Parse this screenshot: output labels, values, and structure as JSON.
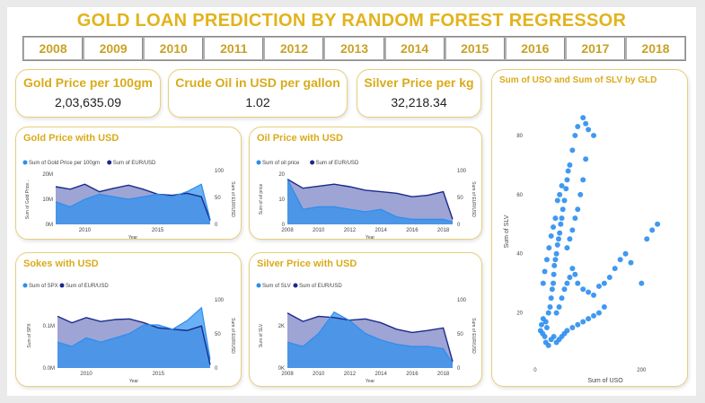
{
  "title": "GOLD LOAN PREDICTION BY RANDOM FOREST REGRESSOR",
  "years": [
    "2008",
    "2009",
    "2010",
    "2011",
    "2012",
    "2013",
    "2014",
    "2015",
    "2016",
    "2017",
    "2018"
  ],
  "kpis": {
    "gold": {
      "label": "Gold Price per 100gm",
      "value": "2,03,635.09"
    },
    "oil": {
      "label": "Crude Oil in USD per gallon",
      "value": "1.02"
    },
    "silver": {
      "label": "Silver Price per kg",
      "value": "32,218.34"
    }
  },
  "colors": {
    "series_light": "#2b8ef0",
    "series_dark": "#1a2a8c",
    "accent": "#d9ab1a",
    "scatter": "#2b8ef0"
  },
  "charts": {
    "gold": {
      "title": "Gold Price with USD",
      "legend": [
        "Sum of Gold Price per 100gm",
        "Sum of EUR/USD"
      ],
      "ylabel": "Sum of Gold Price...",
      "y2label": "Sum of EUR/USD",
      "xlabel": "Year",
      "yticks": [
        "20M",
        "10M",
        "0M"
      ],
      "y2ticks": [
        "100",
        "50",
        "0"
      ],
      "xticks": [
        "2010",
        "2015"
      ]
    },
    "oil": {
      "title": "Oil Price with USD",
      "legend": [
        "Sum of oil price",
        "Sum of EUR/USD"
      ],
      "ylabel": "Sum of oil price",
      "y2label": "Sum of EUR/USD",
      "xlabel": "Year",
      "yticks": [
        "20",
        "10",
        "0"
      ],
      "y2ticks": [
        "100",
        "50",
        "0"
      ],
      "xticks": [
        "2008",
        "2010",
        "2012",
        "2014",
        "2016",
        "2018"
      ]
    },
    "sokes": {
      "title": "Sokes with USD",
      "legend": [
        "Sum of SPX",
        "Sum of EUR/USD"
      ],
      "ylabel": "Sum of SPX",
      "y2label": "Sum of EUR/USD",
      "xlabel": "Year",
      "yticks": [
        "0.1M",
        "0.0M"
      ],
      "y2ticks": [
        "100",
        "50",
        "0"
      ],
      "xticks": [
        "2010",
        "2015"
      ]
    },
    "silver": {
      "title": "Silver Price with USD",
      "legend": [
        "Sum of SLV",
        "Sum of EUR/USD"
      ],
      "ylabel": "Sum of SLV",
      "y2label": "Sum of EUR/USD",
      "xlabel": "Year",
      "yticks": [
        "2K",
        "0K"
      ],
      "y2ticks": [
        "100",
        "50",
        "0"
      ],
      "xticks": [
        "2008",
        "2010",
        "2012",
        "2014",
        "2016",
        "2018"
      ]
    },
    "scatter": {
      "title": "Sum of USO and Sum of SLV by GLD",
      "xlabel": "Sum of USO",
      "ylabel": "Sum of SLV",
      "yticks": [
        "80",
        "60",
        "40",
        "20"
      ],
      "xticks": [
        "0",
        "200"
      ]
    }
  },
  "chart_data": [
    {
      "type": "area",
      "title": "Gold Price with USD",
      "xlabel": "Year",
      "ylim": [
        0,
        20
      ],
      "y2lim": [
        0,
        100
      ],
      "x": [
        2008,
        2009,
        2010,
        2011,
        2012,
        2013,
        2014,
        2015,
        2016,
        2017,
        2018,
        2018.6
      ],
      "series": [
        {
          "name": "Sum of Gold Price per 100gm",
          "axis": "left",
          "values": [
            9,
            7,
            10,
            12,
            11,
            10,
            11,
            12,
            11,
            13,
            16,
            2
          ]
        },
        {
          "name": "Sum of EUR/USD",
          "axis": "right",
          "values": [
            75,
            70,
            80,
            65,
            72,
            78,
            70,
            60,
            58,
            62,
            55,
            8
          ]
        }
      ]
    },
    {
      "type": "area",
      "title": "Oil Price with USD",
      "xlabel": "Year",
      "ylim": [
        0,
        20
      ],
      "y2lim": [
        0,
        100
      ],
      "x": [
        2008,
        2009,
        2010,
        2011,
        2012,
        2013,
        2014,
        2015,
        2016,
        2017,
        2018,
        2018.6
      ],
      "series": [
        {
          "name": "Sum of oil price",
          "axis": "left",
          "values": [
            18,
            6,
            7,
            7,
            6,
            5,
            6,
            3,
            2,
            2,
            2,
            1
          ]
        },
        {
          "name": "Sum of EUR/USD",
          "axis": "right",
          "values": [
            90,
            72,
            76,
            80,
            75,
            68,
            65,
            62,
            55,
            58,
            65,
            10
          ]
        }
      ]
    },
    {
      "type": "area",
      "title": "Sokes with USD",
      "xlabel": "Year",
      "ylim": [
        0,
        0.15
      ],
      "y2lim": [
        0,
        100
      ],
      "x": [
        2008,
        2009,
        2010,
        2011,
        2012,
        2013,
        2014,
        2015,
        2016,
        2017,
        2018,
        2018.6
      ],
      "series": [
        {
          "name": "Sum of SPX",
          "axis": "left",
          "values": [
            0.06,
            0.05,
            0.07,
            0.06,
            0.07,
            0.08,
            0.1,
            0.1,
            0.09,
            0.11,
            0.14,
            0.02
          ]
        },
        {
          "name": "Sum of EUR/USD",
          "axis": "right",
          "values": [
            80,
            70,
            78,
            72,
            75,
            76,
            70,
            62,
            60,
            58,
            65,
            5
          ]
        }
      ]
    },
    {
      "type": "area",
      "title": "Silver Price with USD",
      "xlabel": "Year",
      "ylim": [
        0,
        3
      ],
      "y2lim": [
        0,
        100
      ],
      "x": [
        2008,
        2009,
        2010,
        2011,
        2012,
        2013,
        2014,
        2015,
        2016,
        2017,
        2018,
        2018.6
      ],
      "series": [
        {
          "name": "Sum of SLV",
          "axis": "left",
          "values": [
            1.2,
            1.0,
            1.6,
            2.6,
            2.2,
            1.6,
            1.3,
            1.1,
            1.0,
            1.0,
            0.9,
            0.2
          ]
        },
        {
          "name": "Sum of EUR/USD",
          "axis": "right",
          "values": [
            85,
            72,
            80,
            78,
            74,
            76,
            70,
            60,
            55,
            58,
            62,
            10
          ]
        }
      ]
    },
    {
      "type": "scatter",
      "title": "Sum of USO and Sum of SLV by GLD",
      "xlabel": "Sum of USO",
      "ylabel": "Sum of SLV",
      "xlim": [
        -10,
        240
      ],
      "ylim": [
        5,
        90
      ],
      "points": [
        [
          10,
          14
        ],
        [
          12,
          16
        ],
        [
          14,
          13
        ],
        [
          15,
          18
        ],
        [
          18,
          12
        ],
        [
          20,
          17
        ],
        [
          22,
          15
        ],
        [
          25,
          20
        ],
        [
          28,
          22
        ],
        [
          30,
          25
        ],
        [
          32,
          28
        ],
        [
          34,
          30
        ],
        [
          35,
          33
        ],
        [
          36,
          36
        ],
        [
          38,
          38
        ],
        [
          40,
          40
        ],
        [
          42,
          43
        ],
        [
          44,
          45
        ],
        [
          46,
          47
        ],
        [
          48,
          50
        ],
        [
          50,
          52
        ],
        [
          52,
          55
        ],
        [
          55,
          58
        ],
        [
          58,
          62
        ],
        [
          60,
          65
        ],
        [
          62,
          68
        ],
        [
          65,
          70
        ],
        [
          70,
          75
        ],
        [
          75,
          80
        ],
        [
          80,
          83
        ],
        [
          90,
          86
        ],
        [
          95,
          84
        ],
        [
          100,
          82
        ],
        [
          110,
          80
        ],
        [
          20,
          10
        ],
        [
          25,
          9
        ],
        [
          30,
          11
        ],
        [
          35,
          12
        ],
        [
          40,
          10
        ],
        [
          45,
          11
        ],
        [
          50,
          12
        ],
        [
          55,
          13
        ],
        [
          60,
          14
        ],
        [
          70,
          15
        ],
        [
          80,
          16
        ],
        [
          90,
          17
        ],
        [
          100,
          18
        ],
        [
          110,
          19
        ],
        [
          120,
          20
        ],
        [
          130,
          22
        ],
        [
          40,
          20
        ],
        [
          45,
          22
        ],
        [
          50,
          25
        ],
        [
          55,
          28
        ],
        [
          60,
          30
        ],
        [
          65,
          32
        ],
        [
          70,
          35
        ],
        [
          75,
          33
        ],
        [
          80,
          30
        ],
        [
          90,
          28
        ],
        [
          100,
          27
        ],
        [
          110,
          26
        ],
        [
          120,
          29
        ],
        [
          130,
          30
        ],
        [
          140,
          32
        ],
        [
          150,
          35
        ],
        [
          160,
          38
        ],
        [
          170,
          40
        ],
        [
          180,
          37
        ],
        [
          200,
          30
        ],
        [
          210,
          45
        ],
        [
          220,
          48
        ],
        [
          230,
          50
        ],
        [
          15,
          30
        ],
        [
          18,
          34
        ],
        [
          22,
          38
        ],
        [
          26,
          42
        ],
        [
          30,
          46
        ],
        [
          34,
          49
        ],
        [
          38,
          52
        ],
        [
          42,
          58
        ],
        [
          46,
          60
        ],
        [
          50,
          63
        ],
        [
          60,
          42
        ],
        [
          65,
          45
        ],
        [
          70,
          48
        ],
        [
          75,
          52
        ],
        [
          80,
          55
        ],
        [
          85,
          60
        ],
        [
          90,
          65
        ],
        [
          95,
          72
        ]
      ]
    }
  ]
}
